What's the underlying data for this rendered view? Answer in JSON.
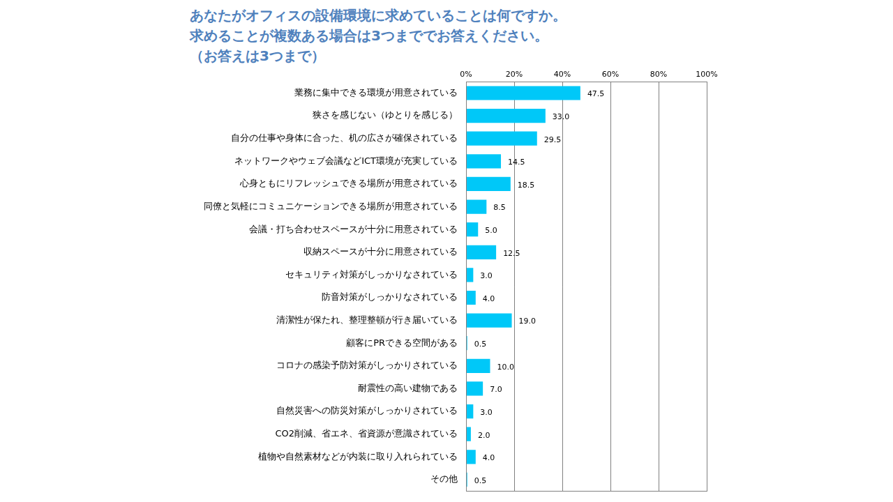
{
  "chart_data": {
    "type": "bar",
    "title": [
      "あなたがオフィスの設備環境に求めていることは何ですか。",
      "求めることが複数ある場合は3つまででお答えください。",
      "（お答えは3つまで）"
    ],
    "orientation": "horizontal",
    "categories": [
      "業務に集中できる環境が用意されている",
      "狭さを感じない（ゆとりを感じる）",
      "自分の仕事や身体に合った、机の広さが確保されている",
      "ネットワークやウェブ会議などICT環境が充実している",
      "心身ともにリフレッシュできる場所が用意されている",
      "同僚と気軽にコミュニケーションできる場所が用意されている",
      "会議・打ち合わせスペースが十分に用意されている",
      "収納スペースが十分に用意されている",
      "セキュリティ対策がしっかりなされている",
      "防音対策がしっかりなされている",
      "清潔性が保たれ、整理整頓が行き届いている",
      "顧客にPRできる空間がある",
      "コロナの感染予防対策がしっかりされている",
      "耐震性の高い建物である",
      "自然災害への防災対策がしっかりされている",
      "CO2削減、省エネ、省資源が意識されている",
      "植物や自然素材などが内装に取り入れられている",
      "その他"
    ],
    "values": [
      47.5,
      33.0,
      29.5,
      14.5,
      18.5,
      8.5,
      5.0,
      12.5,
      3.0,
      4.0,
      19.0,
      0.5,
      10.0,
      7.0,
      3.0,
      2.0,
      4.0,
      0.5
    ],
    "value_labels": [
      "47.5",
      "33.0",
      "29.5",
      "14.5",
      "18.5",
      "8.5",
      "5.0",
      "12.5",
      "3.0",
      "4.0",
      "19.0",
      "0.5",
      "10.0",
      "7.0",
      "3.0",
      "2.0",
      "4.0",
      "0.5"
    ],
    "data_labels": true,
    "color": "#00c8f8",
    "xlim": [
      0,
      100
    ],
    "xticks": [
      {
        "value": 0,
        "label": "0%"
      },
      {
        "value": 20,
        "label": "20%"
      },
      {
        "value": 40,
        "label": "40%"
      },
      {
        "value": 60,
        "label": "60%"
      },
      {
        "value": 80,
        "label": "80%"
      },
      {
        "value": 100,
        "label": "100%"
      }
    ],
    "grid": true
  }
}
